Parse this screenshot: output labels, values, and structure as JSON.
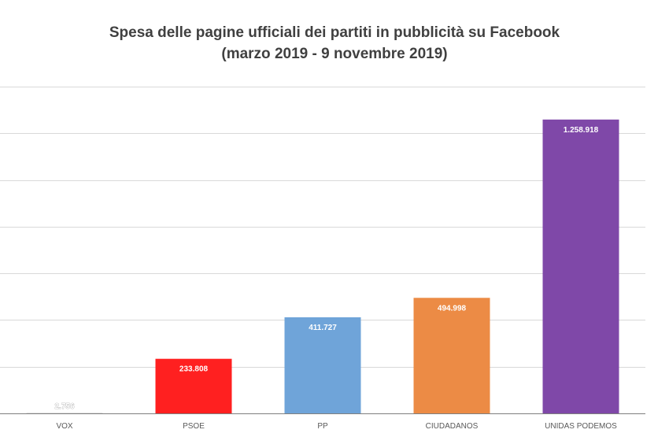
{
  "chart_data": {
    "type": "bar",
    "title": "Spesa delle pagine ufficiali dei partiti in pubblicità su Facebook",
    "subtitle": "(marzo 2019 - 9 novembre 2019)",
    "categories": [
      "VOX",
      "PSOE",
      "PP",
      "CIUDADANOS",
      "UNIDAS PODEMOS"
    ],
    "values": [
      2756,
      233808,
      411727,
      494998,
      1258918
    ],
    "data_labels": [
      "2.756",
      "233.808",
      "411.727",
      "494.998",
      "1.258.918"
    ],
    "colors": [
      "#d9d9d9",
      "#ff2020",
      "#6fa4d9",
      "#ec8b45",
      "#7f48a8"
    ],
    "ylim": [
      0,
      1400000
    ],
    "grid": true,
    "xlabel": "",
    "ylabel": ""
  }
}
